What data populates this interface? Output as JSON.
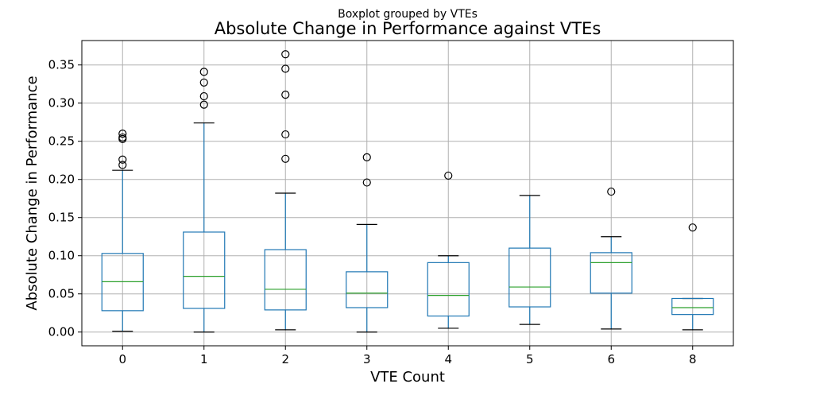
{
  "chart_data": {
    "type": "box",
    "suptitle": "Boxplot grouped by VTEs",
    "title": "Absolute Change in Performance against VTEs",
    "xlabel": "VTE Count",
    "ylabel": "Absolute Change in Performance",
    "ylim": [
      -0.018,
      0.382
    ],
    "yticks": [
      0.0,
      0.05,
      0.1,
      0.15,
      0.2,
      0.25,
      0.3,
      0.35
    ],
    "ytick_labels": [
      "0.00",
      "0.05",
      "0.10",
      "0.15",
      "0.20",
      "0.25",
      "0.30",
      "0.35"
    ],
    "grid": true,
    "colors": {
      "box": "#1f77b4",
      "median": "#2ca02c",
      "whisker_cap": "#000000",
      "grid": "#b0b0b0"
    },
    "categories": [
      "0",
      "1",
      "2",
      "3",
      "4",
      "5",
      "6",
      "8"
    ],
    "boxes": [
      {
        "label": "0",
        "whislo": 0.001,
        "q1": 0.028,
        "med": 0.066,
        "q3": 0.103,
        "whishi": 0.212,
        "fliers": [
          0.219,
          0.226,
          0.253,
          0.255,
          0.26
        ]
      },
      {
        "label": "1",
        "whislo": 0.0,
        "q1": 0.031,
        "med": 0.073,
        "q3": 0.131,
        "whishi": 0.274,
        "fliers": [
          0.298,
          0.309,
          0.327,
          0.341
        ]
      },
      {
        "label": "2",
        "whislo": 0.003,
        "q1": 0.029,
        "med": 0.056,
        "q3": 0.108,
        "whishi": 0.182,
        "fliers": [
          0.227,
          0.259,
          0.311,
          0.345,
          0.364
        ]
      },
      {
        "label": "3",
        "whislo": 0.0,
        "q1": 0.032,
        "med": 0.051,
        "q3": 0.079,
        "whishi": 0.141,
        "fliers": [
          0.196,
          0.229
        ]
      },
      {
        "label": "4",
        "whislo": 0.005,
        "q1": 0.021,
        "med": 0.048,
        "q3": 0.091,
        "whishi": 0.1,
        "fliers": [
          0.205
        ]
      },
      {
        "label": "5",
        "whislo": 0.01,
        "q1": 0.033,
        "med": 0.059,
        "q3": 0.11,
        "whishi": 0.179,
        "fliers": []
      },
      {
        "label": "6",
        "whislo": 0.004,
        "q1": 0.051,
        "med": 0.091,
        "q3": 0.104,
        "whishi": 0.125,
        "fliers": [
          0.184
        ]
      },
      {
        "label": "8",
        "whislo": 0.003,
        "q1": 0.023,
        "med": 0.032,
        "q3": 0.044,
        "whishi": 0.044,
        "fliers": [
          0.137
        ]
      }
    ]
  }
}
